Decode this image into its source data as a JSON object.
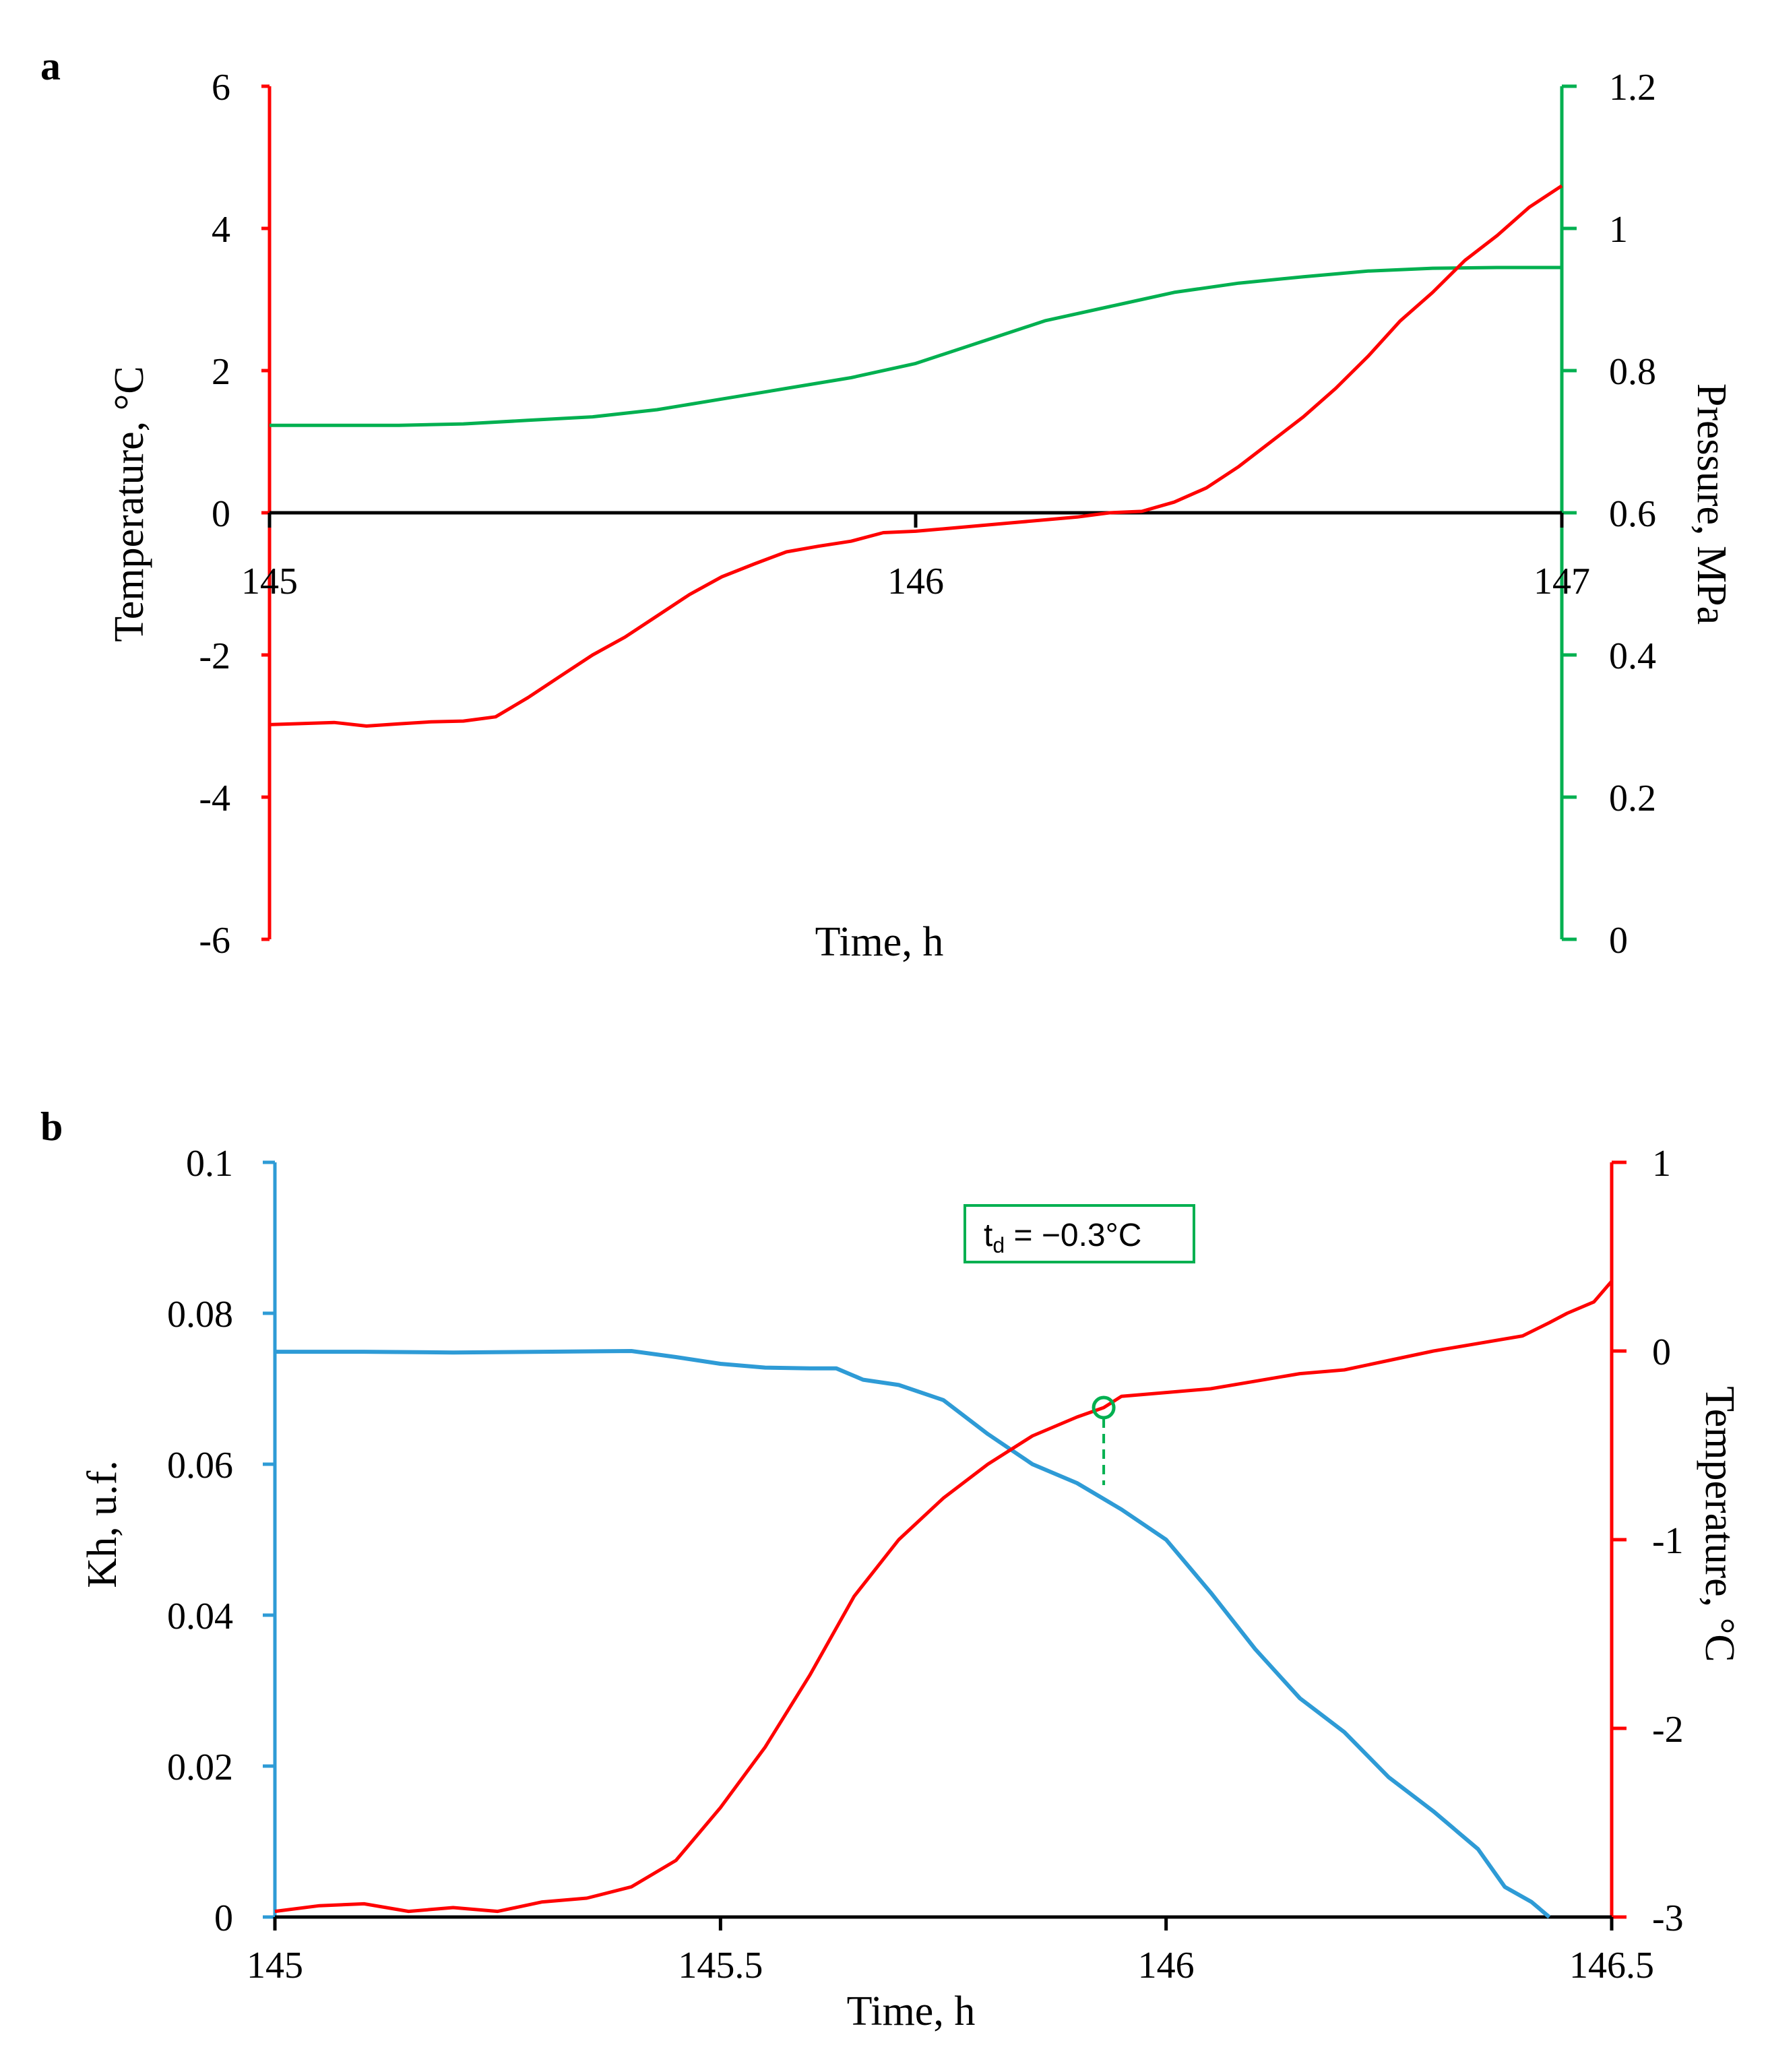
{
  "chart_data": [
    {
      "panel": "a",
      "type": "line",
      "xlabel": "Time, h",
      "x_ticks": [
        "145",
        "146",
        "147"
      ],
      "xlim": [
        145,
        147
      ],
      "ylabel_left": "Temperature, °C",
      "ylim_left": [
        -6,
        6
      ],
      "y_ticks_left": [
        "-6",
        "-4",
        "-2",
        "0",
        "2",
        "4",
        "6"
      ],
      "ylabel_right": "Pressure, MPa",
      "ylim_right": [
        0,
        1.2
      ],
      "y_ticks_right": [
        "0",
        "0.2",
        "0.4",
        "0.6",
        "0.8",
        "1",
        "1.2"
      ],
      "colors": {
        "temperature": "#ff0000",
        "pressure": "#00b050",
        "zero_line": "#000000"
      },
      "series": [
        {
          "name": "Temperature",
          "axis": "left",
          "x": [
            145,
            145.1,
            145.15,
            145.2,
            145.25,
            145.3,
            145.35,
            145.4,
            145.45,
            145.5,
            145.55,
            145.6,
            145.65,
            145.7,
            145.75,
            145.8,
            145.85,
            145.9,
            145.95,
            146,
            146.05,
            146.1,
            146.15,
            146.2,
            146.25,
            146.3,
            146.35,
            146.4,
            146.45,
            146.5,
            146.55,
            146.6,
            146.65,
            146.7,
            146.75,
            146.8,
            146.85,
            146.9,
            146.95,
            147
          ],
          "values": [
            -2.98,
            -2.95,
            -3.0,
            -2.97,
            -2.94,
            -2.93,
            -2.87,
            -2.6,
            -2.3,
            -2.0,
            -1.75,
            -1.45,
            -1.15,
            -0.9,
            -0.72,
            -0.55,
            -0.47,
            -0.4,
            -0.28,
            -0.26,
            -0.22,
            -0.18,
            -0.14,
            -0.1,
            -0.06,
            0.0,
            0.02,
            0.15,
            0.35,
            0.65,
            1.0,
            1.35,
            1.75,
            2.2,
            2.7,
            3.1,
            3.55,
            3.9,
            4.3,
            4.6
          ]
        },
        {
          "name": "Pressure",
          "axis": "right",
          "x": [
            145,
            145.2,
            145.3,
            145.4,
            145.5,
            145.6,
            145.7,
            145.8,
            145.9,
            146,
            146.1,
            146.2,
            146.3,
            146.35,
            146.4,
            146.5,
            146.6,
            146.7,
            146.8,
            146.9,
            147
          ],
          "values": [
            0.723,
            0.723,
            0.725,
            0.73,
            0.735,
            0.745,
            0.76,
            0.775,
            0.79,
            0.81,
            0.84,
            0.87,
            0.89,
            0.9,
            0.91,
            0.923,
            0.932,
            0.94,
            0.944,
            0.945,
            0.945
          ]
        }
      ]
    },
    {
      "panel": "b",
      "type": "line",
      "xlabel": "Time, h",
      "x_ticks": [
        "145",
        "145.5",
        "146",
        "146.5"
      ],
      "xlim": [
        145,
        146.5
      ],
      "ylabel_left": "Kh, u.f.",
      "ylim_left": [
        0,
        0.1
      ],
      "y_ticks_left": [
        "0",
        "0.02",
        "0.04",
        "0.06",
        "0.08",
        "0.1"
      ],
      "ylabel_right": "Temperature, °C",
      "ylim_right": [
        -3,
        1
      ],
      "y_ticks_right": [
        "-3",
        "-2",
        "-1",
        "0",
        "1"
      ],
      "colors": {
        "kh": "#2e9bd6",
        "temperature": "#ff0000",
        "annotation": "#00b050"
      },
      "annotation": {
        "label": "t",
        "subscript": "d",
        "suffix": " = −0.3°C",
        "x": 145.93,
        "y": -0.3
      },
      "series": [
        {
          "name": "Kh",
          "axis": "left",
          "x": [
            145,
            145.1,
            145.2,
            145.3,
            145.4,
            145.45,
            145.5,
            145.55,
            145.6,
            145.63,
            145.66,
            145.7,
            145.75,
            145.8,
            145.85,
            145.9,
            145.95,
            146,
            146.05,
            146.1,
            146.15,
            146.2,
            146.25,
            146.3,
            146.35,
            146.38,
            146.41,
            146.43
          ],
          "values": [
            0.0749,
            0.0749,
            0.0748,
            0.0749,
            0.075,
            0.0742,
            0.0733,
            0.0728,
            0.0727,
            0.0727,
            0.0712,
            0.0705,
            0.0685,
            0.064,
            0.06,
            0.0575,
            0.054,
            0.05,
            0.043,
            0.0355,
            0.029,
            0.0245,
            0.0185,
            0.014,
            0.009,
            0.004,
            0.002,
            0.0
          ]
        },
        {
          "name": "Temperature",
          "axis": "right",
          "x": [
            145,
            145.05,
            145.1,
            145.15,
            145.2,
            145.25,
            145.3,
            145.35,
            145.4,
            145.45,
            145.5,
            145.55,
            145.6,
            145.65,
            145.7,
            145.75,
            145.8,
            145.85,
            145.9,
            145.93,
            145.95,
            146,
            146.05,
            146.1,
            146.15,
            146.2,
            146.25,
            146.3,
            146.35,
            146.4,
            146.43,
            146.45,
            146.48,
            146.5
          ],
          "values": [
            -2.97,
            -2.94,
            -2.93,
            -2.97,
            -2.95,
            -2.97,
            -2.92,
            -2.9,
            -2.84,
            -2.7,
            -2.42,
            -2.1,
            -1.72,
            -1.3,
            -1.0,
            -0.78,
            -0.6,
            -0.45,
            -0.35,
            -0.3,
            -0.24,
            -0.22,
            -0.2,
            -0.16,
            -0.12,
            -0.1,
            -0.05,
            0.0,
            0.04,
            0.08,
            0.15,
            0.2,
            0.26,
            0.37
          ]
        }
      ]
    }
  ]
}
